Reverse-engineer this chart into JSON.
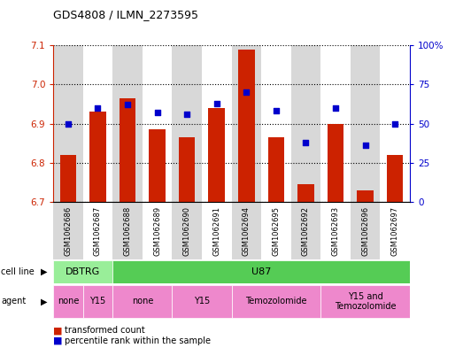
{
  "title": "GDS4808 / ILMN_2273595",
  "samples": [
    "GSM1062686",
    "GSM1062687",
    "GSM1062688",
    "GSM1062689",
    "GSM1062690",
    "GSM1062691",
    "GSM1062694",
    "GSM1062695",
    "GSM1062692",
    "GSM1062693",
    "GSM1062696",
    "GSM1062697"
  ],
  "bar_values": [
    6.82,
    6.93,
    6.965,
    6.885,
    6.865,
    6.94,
    7.09,
    6.865,
    6.745,
    6.9,
    6.73,
    6.82
  ],
  "blue_values": [
    50,
    60,
    62,
    57,
    56,
    63,
    70,
    58,
    38,
    60,
    36,
    50
  ],
  "ylim_left": [
    6.7,
    7.1
  ],
  "ylim_right": [
    0,
    100
  ],
  "bar_color": "#cc2200",
  "blue_color": "#0000cc",
  "left_yticks": [
    6.7,
    6.8,
    6.9,
    7.0,
    7.1
  ],
  "right_yticks": [
    0,
    25,
    50,
    75,
    100
  ],
  "right_yticklabels": [
    "0",
    "25",
    "50",
    "75",
    "100%"
  ],
  "cell_line_groups": [
    {
      "label": "DBTRG",
      "start": 0,
      "end": 2,
      "color": "#99ee99"
    },
    {
      "label": "U87",
      "start": 2,
      "end": 12,
      "color": "#55cc55"
    }
  ],
  "agent_groups": [
    {
      "label": "none",
      "start": 0,
      "end": 1
    },
    {
      "label": "Y15",
      "start": 1,
      "end": 2
    },
    {
      "label": "none",
      "start": 2,
      "end": 4
    },
    {
      "label": "Y15",
      "start": 4,
      "end": 6
    },
    {
      "label": "Temozolomide",
      "start": 6,
      "end": 9
    },
    {
      "label": "Y15 and\nTemozolomide",
      "start": 9,
      "end": 12
    }
  ],
  "agent_color": "#ee88cc",
  "bg_even": "#d8d8d8",
  "bg_odd": "#ffffff"
}
